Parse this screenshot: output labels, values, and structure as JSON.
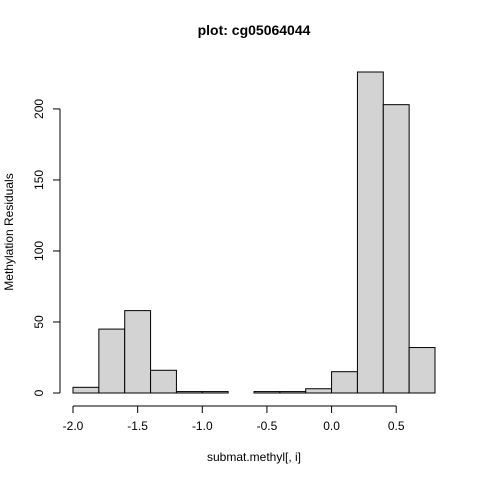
{
  "chart_data": {
    "type": "bar",
    "title": "plot: cg05064044",
    "xlabel": "submat.methyl[, i]",
    "ylabel": "Methylation Residuals",
    "bin_edges": [
      -2.0,
      -1.8,
      -1.6,
      -1.4,
      -1.2,
      -1.0,
      -0.8,
      -0.6,
      -0.4,
      -0.2,
      0.0,
      0.2,
      0.4,
      0.6,
      0.8
    ],
    "values": [
      4,
      45,
      58,
      16,
      1,
      1,
      0,
      1,
      1,
      3,
      15,
      226,
      203,
      32
    ],
    "xlim": [
      -2.0,
      0.8
    ],
    "ylim": [
      0,
      226
    ],
    "x_ticks": [
      -2.0,
      -1.5,
      -1.0,
      -0.5,
      0.0,
      0.5
    ],
    "x_tick_labels": [
      "-2.0",
      "-1.5",
      "-1.0",
      "-0.5",
      "0.0",
      "0.5"
    ],
    "y_ticks": [
      0,
      50,
      100,
      150,
      200
    ],
    "y_tick_labels": [
      "0",
      "50",
      "100",
      "150",
      "200"
    ],
    "grid": false,
    "colors": {
      "bar_fill": "#d3d3d3",
      "bar_stroke": "#000000"
    }
  }
}
